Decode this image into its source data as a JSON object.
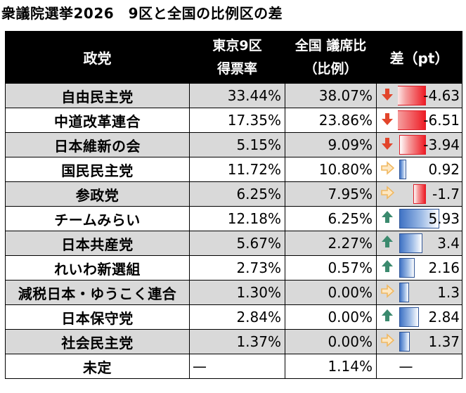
{
  "title": "衆議院選挙2026　9区と全国の比例区の差",
  "headers": {
    "party": "政党",
    "tokyo_line1": "東京9区",
    "tokyo_line2": "得票率",
    "national_line1": "全国 議席比",
    "national_line2": "（比例）",
    "diff": "差（pt）"
  },
  "colors": {
    "header_bg": "#000000",
    "shade_row": "#d9d9d9",
    "neg_bar": "#ee1c25",
    "pos_bar": "#3f72c4",
    "arrow_down": "#e2452b",
    "arrow_flat": "#f0b860",
    "arrow_up": "#3b8a6e"
  },
  "chart_data": {
    "type": "table",
    "title": "衆議院選挙2026　9区と全国の比例区の差",
    "columns": [
      "政党",
      "東京9区 得票率",
      "全国 議席比（比例）",
      "差（pt）"
    ],
    "diff_range": [
      -6.51,
      5.93
    ],
    "rows": [
      {
        "party": "自由民主党",
        "tokyo": "33.44%",
        "national": "38.07%",
        "diff": -4.63,
        "diff_label": "-4.63",
        "trend": "down",
        "shaded": true
      },
      {
        "party": "中道改革連合",
        "tokyo": "17.35%",
        "national": "23.86%",
        "diff": -6.51,
        "diff_label": "-6.51",
        "trend": "down",
        "shaded": false
      },
      {
        "party": "日本維新の会",
        "tokyo": "5.15%",
        "national": "9.09%",
        "diff": -3.94,
        "diff_label": "-3.94",
        "trend": "down",
        "shaded": true
      },
      {
        "party": "国民民主党",
        "tokyo": "11.72%",
        "national": "10.80%",
        "diff": 0.92,
        "diff_label": "0.92",
        "trend": "flat",
        "shaded": false
      },
      {
        "party": "参政党",
        "tokyo": "6.25%",
        "national": "7.95%",
        "diff": -1.7,
        "diff_label": "-1.7",
        "trend": "flat",
        "shaded": true
      },
      {
        "party": "チームみらい",
        "tokyo": "12.18%",
        "national": "6.25%",
        "diff": 5.93,
        "diff_label": "5.93",
        "trend": "up",
        "shaded": false
      },
      {
        "party": "日本共産党",
        "tokyo": "5.67%",
        "national": "2.27%",
        "diff": 3.4,
        "diff_label": "3.4",
        "trend": "up",
        "shaded": true
      },
      {
        "party": "れいわ新選組",
        "tokyo": "2.73%",
        "national": "0.57%",
        "diff": 2.16,
        "diff_label": "2.16",
        "trend": "up",
        "shaded": false
      },
      {
        "party": "減税日本・ゆうこく連合",
        "tokyo": "1.30%",
        "national": "0.00%",
        "diff": 1.3,
        "diff_label": "1.3",
        "trend": "flat",
        "shaded": true
      },
      {
        "party": "日本保守党",
        "tokyo": "2.84%",
        "national": "0.00%",
        "diff": 2.84,
        "diff_label": "2.84",
        "trend": "up",
        "shaded": false
      },
      {
        "party": "社会民主党",
        "tokyo": "1.37%",
        "national": "0.00%",
        "diff": 1.37,
        "diff_label": "1.37",
        "trend": "flat",
        "shaded": true
      },
      {
        "party": "未定",
        "tokyo": "—",
        "national": "1.14%",
        "diff": null,
        "diff_label": "—",
        "trend": "none",
        "shaded": false
      }
    ]
  }
}
